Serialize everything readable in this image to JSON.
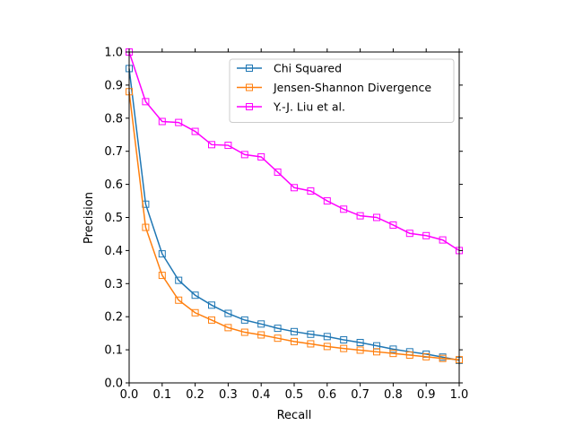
{
  "chart_data": {
    "type": "line",
    "title": "",
    "xlabel": "Recall",
    "ylabel": "Precision",
    "xlim": [
      0.0,
      1.0
    ],
    "ylim": [
      0.0,
      1.0
    ],
    "grid": false,
    "legend_position": "top-right",
    "x_ticks": [
      "0.0",
      "0.1",
      "0.2",
      "0.3",
      "0.4",
      "0.5",
      "0.6",
      "0.7",
      "0.8",
      "0.9",
      "1.0"
    ],
    "y_ticks": [
      "0.0",
      "0.1",
      "0.2",
      "0.3",
      "0.4",
      "0.5",
      "0.6",
      "0.7",
      "0.8",
      "0.9",
      "1.0"
    ],
    "x": [
      0.0,
      0.05,
      0.1,
      0.15,
      0.2,
      0.25,
      0.3,
      0.35,
      0.4,
      0.45,
      0.5,
      0.55,
      0.6,
      0.65,
      0.7,
      0.75,
      0.8,
      0.85,
      0.9,
      0.95,
      1.0
    ],
    "series": [
      {
        "name": "Chi Squared",
        "color": "#1f77b4",
        "marker": "square-open",
        "values": [
          0.95,
          0.54,
          0.39,
          0.31,
          0.265,
          0.235,
          0.21,
          0.19,
          0.178,
          0.165,
          0.155,
          0.147,
          0.14,
          0.13,
          0.122,
          0.112,
          0.102,
          0.094,
          0.087,
          0.078,
          0.068
        ]
      },
      {
        "name": "Jensen-Shannon Divergence",
        "color": "#ff7f0e",
        "marker": "square-open",
        "values": [
          0.88,
          0.47,
          0.325,
          0.25,
          0.212,
          0.19,
          0.167,
          0.153,
          0.145,
          0.135,
          0.125,
          0.118,
          0.11,
          0.104,
          0.099,
          0.094,
          0.089,
          0.084,
          0.079,
          0.074,
          0.07
        ]
      },
      {
        "name": "Y.-J. Liu et al.",
        "color": "#ff00ff",
        "marker": "square-open",
        "values": [
          1.0,
          0.85,
          0.79,
          0.787,
          0.76,
          0.72,
          0.718,
          0.69,
          0.683,
          0.637,
          0.59,
          0.58,
          0.55,
          0.525,
          0.505,
          0.5,
          0.477,
          0.452,
          0.445,
          0.432,
          0.4
        ]
      }
    ]
  }
}
